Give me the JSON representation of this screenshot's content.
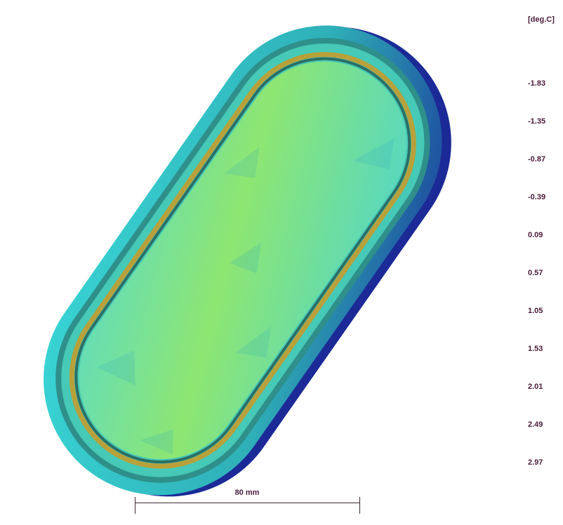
{
  "legend": {
    "unit": "[deg.C]",
    "values": [
      "-1.83",
      "-1.35",
      "-0.87",
      "-0.39",
      "0.09",
      "0.57",
      "1.05",
      "1.53",
      "2.01",
      "2.49",
      "2.97"
    ]
  },
  "scale_bar": {
    "label": "80 mm"
  },
  "colors": {
    "deep_blue": "#1a2fa0",
    "cyan": "#3fe0d0",
    "teal": "#3ac9b0",
    "green": "#8ae86a",
    "yellow": "#c8d03a",
    "orange": "#c88a2a",
    "label": "#4a1a3a"
  }
}
